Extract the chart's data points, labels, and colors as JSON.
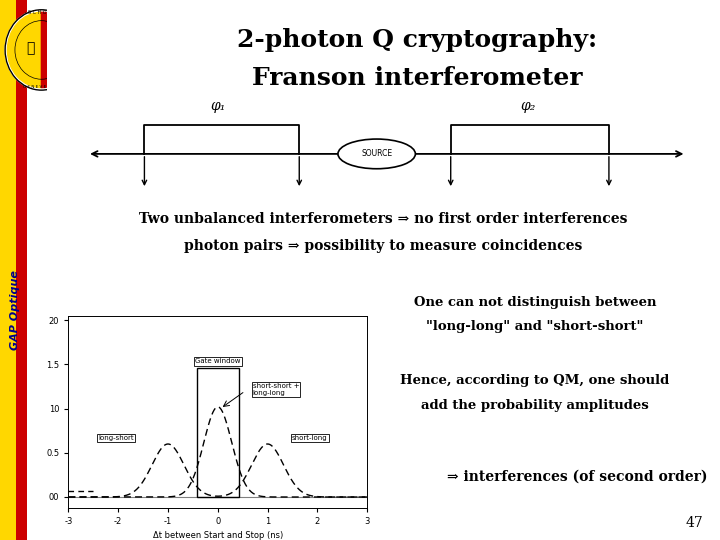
{
  "title_line1": "2-photon Q cryptography:",
  "title_line2": "Franson interferometer",
  "title_fontsize": 18,
  "bg_color": "#ffffff",
  "sidebar_yellow": "#FFD700",
  "sidebar_red": "#CC0000",
  "gap_optique_color": "#00008B",
  "text1": "Two unbalanced interferometers ⇒ no first order interferences",
  "text2": "photon pairs ⇒ possibility to measure coincidences",
  "text3": "One can not distinguish between",
  "text4": "\"long-long\" and \"short-short\"",
  "text5": "Hence, according to QM, one should",
  "text6": "add the probability amplitudes",
  "text7": "⇒ interferences (of second order)",
  "page_number": "47",
  "phi1_label": "φ₁",
  "phi2_label": "φ₂",
  "xlabel": "Δt between Start and Stop (ns)",
  "plot_xlim": [
    -3,
    3
  ],
  "gate_window_label": "Gate window",
  "short_short_label": "short-short +\nlong-long",
  "long_short_label": "long-short",
  "short_long_label": "short-long"
}
